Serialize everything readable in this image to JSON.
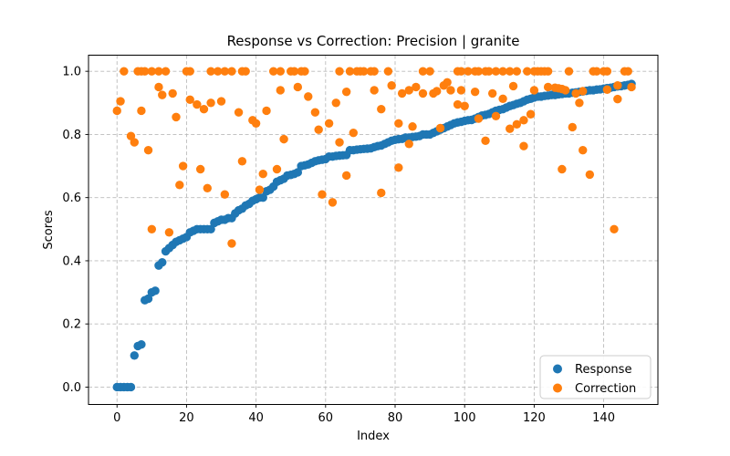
{
  "chart": {
    "title": "Response vs Correction: Precision | granite",
    "xlabel": "Index",
    "ylabel": "Scores"
  },
  "chart_data": {
    "type": "scatter",
    "title": "Response vs Correction: Precision | granite",
    "xlabel": "Index",
    "ylabel": "Scores",
    "xlim": [
      -8.2,
      155.6
    ],
    "ylim": [
      -0.055,
      1.051
    ],
    "xticks": [
      0,
      20,
      40,
      60,
      80,
      100,
      120,
      140
    ],
    "yticks": [
      0.0,
      0.2,
      0.4,
      0.6,
      0.8,
      1.0
    ],
    "grid": true,
    "grid_style": "dashed",
    "legend_position": "lower right",
    "legend_labels": [
      "Response",
      "Correction"
    ],
    "colors": {
      "response": "#1f77b4",
      "correction": "#ff7f0e"
    },
    "series": [
      {
        "name": "Response",
        "note": "x is the point index 0..148, sorted ascending",
        "y": [
          0,
          0,
          0,
          0,
          0,
          0.1,
          0.13,
          0.135,
          0.275,
          0.28,
          0.3,
          0.305,
          0.385,
          0.395,
          0.43,
          0.44,
          0.45,
          0.46,
          0.465,
          0.47,
          0.475,
          0.49,
          0.495,
          0.5,
          0.5,
          0.5,
          0.5,
          0.5,
          0.52,
          0.525,
          0.53,
          0.53,
          0.535,
          0.535,
          0.55,
          0.56,
          0.565,
          0.575,
          0.58,
          0.59,
          0.595,
          0.6,
          0.6,
          0.62,
          0.625,
          0.635,
          0.65,
          0.655,
          0.66,
          0.67,
          0.672,
          0.675,
          0.68,
          0.7,
          0.702,
          0.705,
          0.71,
          0.715,
          0.718,
          0.72,
          0.722,
          0.73,
          0.73,
          0.732,
          0.733,
          0.734,
          0.735,
          0.75,
          0.75,
          0.752,
          0.753,
          0.754,
          0.755,
          0.756,
          0.76,
          0.763,
          0.765,
          0.77,
          0.775,
          0.78,
          0.783,
          0.785,
          0.786,
          0.79,
          0.79,
          0.792,
          0.793,
          0.795,
          0.8,
          0.8,
          0.8,
          0.805,
          0.81,
          0.815,
          0.82,
          0.825,
          0.83,
          0.835,
          0.838,
          0.84,
          0.843,
          0.845,
          0.846,
          0.85,
          0.855,
          0.86,
          0.862,
          0.865,
          0.87,
          0.875,
          0.878,
          0.88,
          0.885,
          0.89,
          0.893,
          0.897,
          0.9,
          0.905,
          0.91,
          0.913,
          0.917,
          0.92,
          0.92,
          0.922,
          0.923,
          0.925,
          0.925,
          0.927,
          0.928,
          0.93,
          0.93,
          0.932,
          0.933,
          0.935,
          0.936,
          0.938,
          0.94,
          0.94,
          0.942,
          0.943,
          0.945,
          0.947,
          0.948,
          0.95,
          0.952,
          0.953,
          0.955,
          0.957,
          0.96
        ]
      },
      {
        "name": "Correction",
        "points": [
          [
            0,
            0.875
          ],
          [
            1,
            0.905
          ],
          [
            2,
            1.0
          ],
          [
            4,
            0.795
          ],
          [
            5,
            0.775
          ],
          [
            6,
            1.0
          ],
          [
            7,
            1.0
          ],
          [
            7,
            0.875
          ],
          [
            8,
            1.0
          ],
          [
            9,
            0.75
          ],
          [
            10,
            1.0
          ],
          [
            10,
            0.5
          ],
          [
            12,
            1.0
          ],
          [
            12,
            0.95
          ],
          [
            13,
            0.925
          ],
          [
            14,
            1.0
          ],
          [
            15,
            0.49
          ],
          [
            16,
            0.93
          ],
          [
            17,
            0.855
          ],
          [
            18,
            0.64
          ],
          [
            19,
            0.7
          ],
          [
            20,
            1.0
          ],
          [
            21,
            1.0
          ],
          [
            21,
            0.91
          ],
          [
            23,
            0.895
          ],
          [
            24,
            0.69
          ],
          [
            25,
            0.88
          ],
          [
            26,
            0.63
          ],
          [
            27,
            1.0
          ],
          [
            27,
            0.9
          ],
          [
            29,
            1.0
          ],
          [
            30,
            0.905
          ],
          [
            31,
            1.0
          ],
          [
            31,
            0.61
          ],
          [
            33,
            1.0
          ],
          [
            33,
            0.455
          ],
          [
            35,
            0.87
          ],
          [
            36,
            1.0
          ],
          [
            36,
            0.715
          ],
          [
            37,
            1.0
          ],
          [
            39,
            0.845
          ],
          [
            40,
            0.835
          ],
          [
            41,
            0.625
          ],
          [
            42,
            0.675
          ],
          [
            43,
            0.875
          ],
          [
            45,
            1.0
          ],
          [
            46,
            0.69
          ],
          [
            47,
            1.0
          ],
          [
            47,
            0.94
          ],
          [
            48,
            0.785
          ],
          [
            50,
            1.0
          ],
          [
            51,
            1.0
          ],
          [
            52,
            0.95
          ],
          [
            53,
            1.0
          ],
          [
            54,
            1.0
          ],
          [
            55,
            0.92
          ],
          [
            57,
            0.87
          ],
          [
            58,
            0.815
          ],
          [
            59,
            0.61
          ],
          [
            61,
            0.835
          ],
          [
            62,
            0.585
          ],
          [
            63,
            0.9
          ],
          [
            64,
            1.0
          ],
          [
            64,
            0.775
          ],
          [
            66,
            0.935
          ],
          [
            66,
            0.67
          ],
          [
            67,
            1.0
          ],
          [
            68,
            0.805
          ],
          [
            69,
            1.0
          ],
          [
            70,
            1.0
          ],
          [
            71,
            1.0
          ],
          [
            73,
            1.0
          ],
          [
            74,
            1.0
          ],
          [
            74,
            0.94
          ],
          [
            76,
            0.88
          ],
          [
            76,
            0.615
          ],
          [
            78,
            1.0
          ],
          [
            79,
            0.955
          ],
          [
            81,
            0.835
          ],
          [
            81,
            0.695
          ],
          [
            82,
            0.93
          ],
          [
            84,
            0.94
          ],
          [
            84,
            0.77
          ],
          [
            85,
            0.825
          ],
          [
            86,
            0.95
          ],
          [
            88,
            1.0
          ],
          [
            88,
            0.93
          ],
          [
            90,
            1.0
          ],
          [
            91,
            0.93
          ],
          [
            92,
            0.937
          ],
          [
            93,
            0.82
          ],
          [
            94,
            0.955
          ],
          [
            95,
            0.965
          ],
          [
            96,
            0.94
          ],
          [
            98,
            1.0
          ],
          [
            98,
            0.895
          ],
          [
            99,
            1.0
          ],
          [
            99,
            0.94
          ],
          [
            100,
            0.89
          ],
          [
            101,
            1.0
          ],
          [
            103,
            1.0
          ],
          [
            103,
            0.935
          ],
          [
            104,
            1.0
          ],
          [
            104,
            0.85
          ],
          [
            106,
            1.0
          ],
          [
            106,
            0.78
          ],
          [
            107,
            1.0
          ],
          [
            108,
            0.93
          ],
          [
            109,
            1.0
          ],
          [
            109,
            0.858
          ],
          [
            111,
            1.0
          ],
          [
            111,
            0.913
          ],
          [
            113,
            1.0
          ],
          [
            113,
            0.818
          ],
          [
            114,
            0.953
          ],
          [
            115,
            1.0
          ],
          [
            115,
            0.832
          ],
          [
            117,
            0.845
          ],
          [
            117,
            0.763
          ],
          [
            118,
            1.0
          ],
          [
            119,
            0.864
          ],
          [
            120,
            1.0
          ],
          [
            120,
            0.94
          ],
          [
            121,
            1.0
          ],
          [
            122,
            1.0
          ],
          [
            123,
            1.0
          ],
          [
            124,
            1.0
          ],
          [
            124,
            0.95
          ],
          [
            126,
            0.948
          ],
          [
            127,
            0.946
          ],
          [
            128,
            0.944
          ],
          [
            128,
            0.69
          ],
          [
            129,
            0.94
          ],
          [
            130,
            1.0
          ],
          [
            131,
            0.823
          ],
          [
            132,
            0.93
          ],
          [
            133,
            0.9
          ],
          [
            134,
            0.937
          ],
          [
            134,
            0.75
          ],
          [
            136,
            0.673
          ],
          [
            137,
            1.0
          ],
          [
            138,
            1.0
          ],
          [
            140,
            1.0
          ],
          [
            141,
            1.0
          ],
          [
            141,
            0.942
          ],
          [
            143,
            0.5
          ],
          [
            144,
            0.955
          ],
          [
            144,
            0.912
          ],
          [
            146,
            1.0
          ],
          [
            147,
            1.0
          ],
          [
            148,
            0.95
          ]
        ]
      }
    ]
  }
}
